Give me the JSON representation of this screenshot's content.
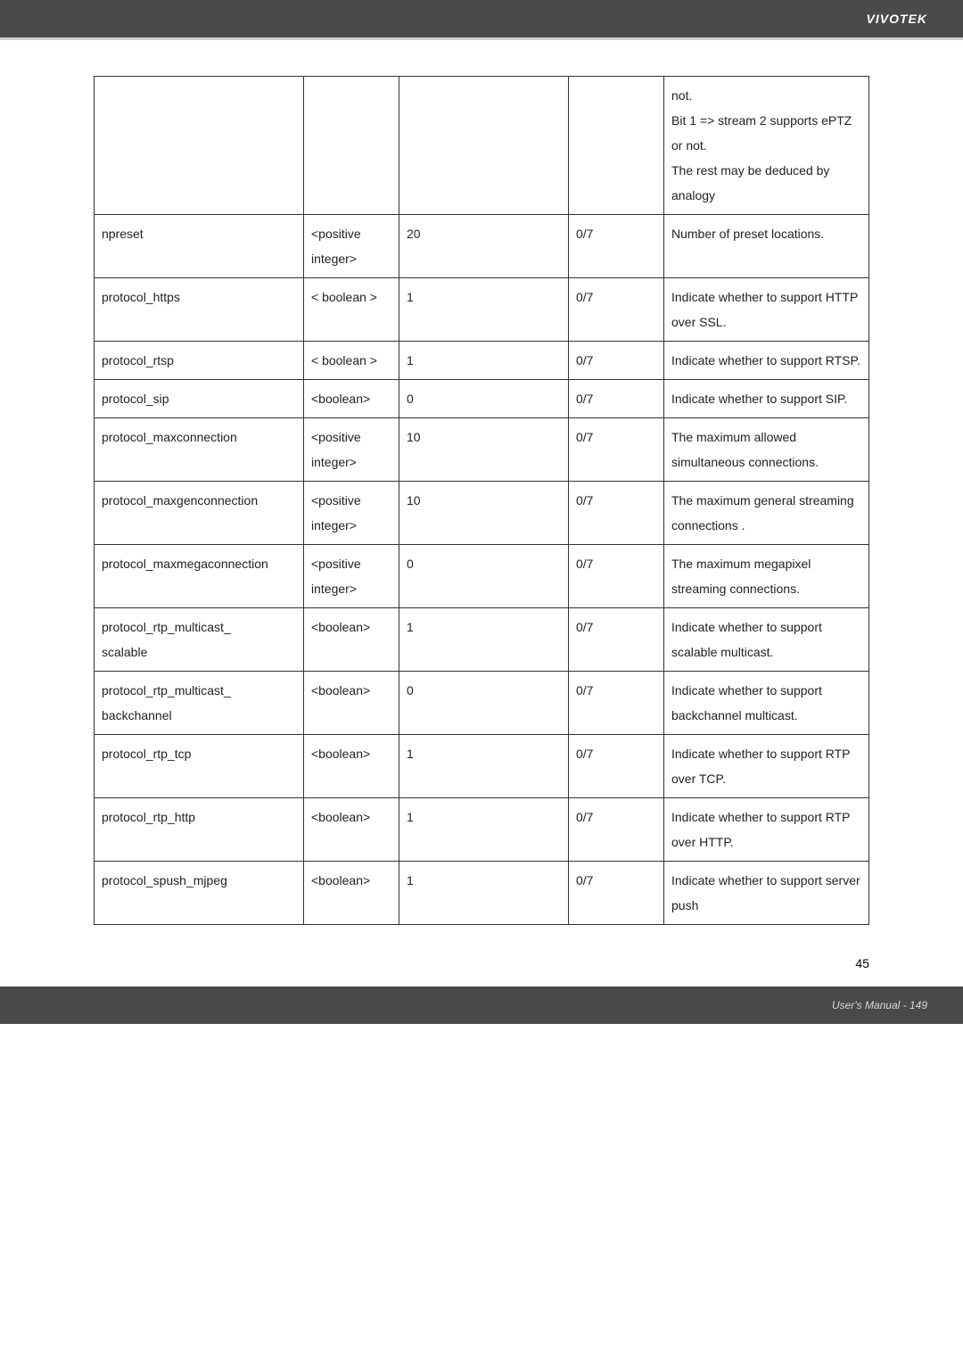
{
  "brand": "VIVOTEK",
  "page_number": "45",
  "footer_text": "User's Manual - 149",
  "colors": {
    "header_bg": "#4a4a4a",
    "brand_text": "#ffffff",
    "separator": "#d0d0d0",
    "border": "#333333",
    "text": "#222222",
    "footer_text": "#d8d8d8"
  },
  "rows": [
    {
      "c1": "",
      "c2": "",
      "c3": "",
      "c4": "",
      "c5": "not.\nBit 1 => stream 2 supports ePTZ or not.\nThe rest may be deduced by analogy"
    },
    {
      "c1": "npreset",
      "c2": "<positive integer>",
      "c3": "20",
      "c4": "0/7",
      "c5": "Number of preset locations."
    },
    {
      "c1": "protocol_https",
      "c2": "< boolean >",
      "c3": "1",
      "c4": "0/7",
      "c5": "Indicate whether to support HTTP over SSL."
    },
    {
      "c1": "protocol_rtsp",
      "c2": "< boolean >",
      "c3": "1",
      "c4": "0/7",
      "c5": "Indicate whether to support RTSP."
    },
    {
      "c1": "protocol_sip",
      "c2": "<boolean>",
      "c3": "0",
      "c4": "0/7",
      "c5": "Indicate whether to support SIP."
    },
    {
      "c1": "protocol_maxconnection",
      "c2": "<positive integer>",
      "c3": "10",
      "c4": "0/7",
      "c5": "The maximum allowed simultaneous connections."
    },
    {
      "c1": "protocol_maxgenconnection",
      "c2": "<positive integer>",
      "c3": "10",
      "c4": "0/7",
      "c5": "The maximum general streaming connections ."
    },
    {
      "c1": "protocol_maxmegaconnection",
      "c2": "<positive integer>",
      "c3": "0",
      "c4": "0/7",
      "c5": "The maximum megapixel streaming connections."
    },
    {
      "c1": "protocol_rtp_multicast_\nscalable",
      "c2": "<boolean>",
      "c3": "1",
      "c4": "0/7",
      "c5": "Indicate whether to support scalable multicast."
    },
    {
      "c1": "protocol_rtp_multicast_\nbackchannel",
      "c2": "<boolean>",
      "c3": "0",
      "c4": "0/7",
      "c5": "Indicate whether to support backchannel multicast."
    },
    {
      "c1": "protocol_rtp_tcp",
      "c2": "<boolean>",
      "c3": "1",
      "c4": "0/7",
      "c5": "Indicate whether to support RTP over TCP."
    },
    {
      "c1": "protocol_rtp_http",
      "c2": "<boolean>",
      "c3": "1",
      "c4": "0/7",
      "c5": "Indicate whether to support RTP over HTTP."
    },
    {
      "c1": "protocol_spush_mjpeg",
      "c2": "<boolean>",
      "c3": "1",
      "c4": "0/7",
      "c5": "Indicate whether to support server push"
    }
  ]
}
